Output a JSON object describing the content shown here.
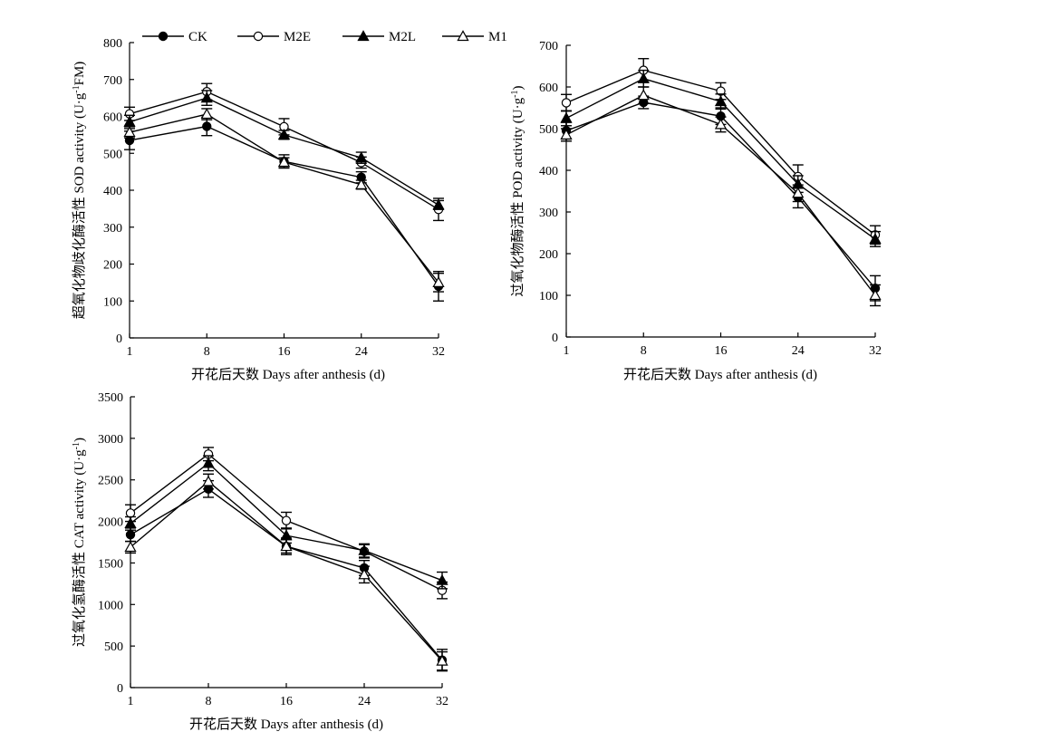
{
  "legend": [
    {
      "name": "CK",
      "marker": "filled-circle"
    },
    {
      "name": "M2E",
      "marker": "open-circle"
    },
    {
      "name": "M2L",
      "marker": "filled-triangle"
    },
    {
      "name": "M1",
      "marker": "open-triangle"
    }
  ],
  "chart_data": [
    {
      "type": "line",
      "ylabel_main": "超氧化物歧化酶活性 SOD activity (U·g",
      "ylabel_sup": "-1",
      "ylabel_tail": "FM)",
      "xlabel": "开花后天数 Days after anthesis (d)",
      "categories": [
        "1",
        "8",
        "16",
        "24",
        "32"
      ],
      "ylim": [
        0,
        800
      ],
      "yticks": [
        0,
        100,
        200,
        300,
        400,
        500,
        600,
        700,
        800
      ],
      "series": [
        {
          "name": "CK",
          "values": [
            535,
            573,
            478,
            435,
            140
          ],
          "errors": [
            25,
            25,
            18,
            15,
            40
          ]
        },
        {
          "name": "M2E",
          "values": [
            607,
            667,
            572,
            475,
            348
          ],
          "errors": [
            18,
            22,
            22,
            15,
            30
          ]
        },
        {
          "name": "M2L",
          "values": [
            585,
            650,
            550,
            488,
            360
          ],
          "errors": [
            18,
            20,
            12,
            15,
            12
          ]
        },
        {
          "name": "M1",
          "values": [
            557,
            606,
            476,
            415,
            150
          ],
          "errors": [
            15,
            15,
            12,
            12,
            25
          ]
        }
      ]
    },
    {
      "type": "line",
      "ylabel_main": "过氧化物酶活性 POD activity (U·g",
      "ylabel_sup": "-1",
      "ylabel_tail": ")",
      "xlabel": "开花后天数 Days after anthesis (d)",
      "categories": [
        "1",
        "8",
        "16",
        "24",
        "32"
      ],
      "ylim": [
        0,
        700
      ],
      "yticks": [
        0,
        100,
        200,
        300,
        400,
        500,
        600,
        700
      ],
      "series": [
        {
          "name": "CK",
          "values": [
            495,
            563,
            530,
            335,
            117
          ],
          "errors": [
            20,
            15,
            20,
            25,
            30
          ]
        },
        {
          "name": "M2E",
          "values": [
            562,
            640,
            590,
            385,
            245
          ],
          "errors": [
            20,
            28,
            20,
            28,
            22
          ]
        },
        {
          "name": "M2L",
          "values": [
            525,
            620,
            565,
            367,
            235
          ],
          "errors": [
            18,
            20,
            18,
            20,
            18
          ]
        },
        {
          "name": "M1",
          "values": [
            485,
            580,
            510,
            345,
            100
          ],
          "errors": [
            15,
            20,
            18,
            20,
            25
          ]
        }
      ]
    },
    {
      "type": "line",
      "ylabel_main": "过氧化氢酶活性 CAT activity (U·g",
      "ylabel_sup": "-1",
      "ylabel_tail": ")",
      "xlabel": "开花后天数 Days after anthesis (d)",
      "categories": [
        "1",
        "8",
        "16",
        "24",
        "32"
      ],
      "ylim": [
        0,
        3500
      ],
      "yticks": [
        0,
        500,
        1000,
        1500,
        2000,
        2500,
        3000,
        3500
      ],
      "series": [
        {
          "name": "CK",
          "values": [
            1840,
            2390,
            1700,
            1440,
            330
          ],
          "errors": [
            80,
            100,
            100,
            90,
            130
          ]
        },
        {
          "name": "M2E",
          "values": [
            2100,
            2810,
            2010,
            1640,
            1170
          ],
          "errors": [
            100,
            80,
            100,
            80,
            100
          ]
        },
        {
          "name": "M2L",
          "values": [
            1975,
            2700,
            1830,
            1650,
            1290
          ],
          "errors": [
            80,
            90,
            90,
            80,
            100
          ]
        },
        {
          "name": "M1",
          "values": [
            1690,
            2480,
            1700,
            1360,
            320
          ],
          "errors": [
            70,
            90,
            80,
            100,
            110
          ]
        }
      ]
    }
  ]
}
